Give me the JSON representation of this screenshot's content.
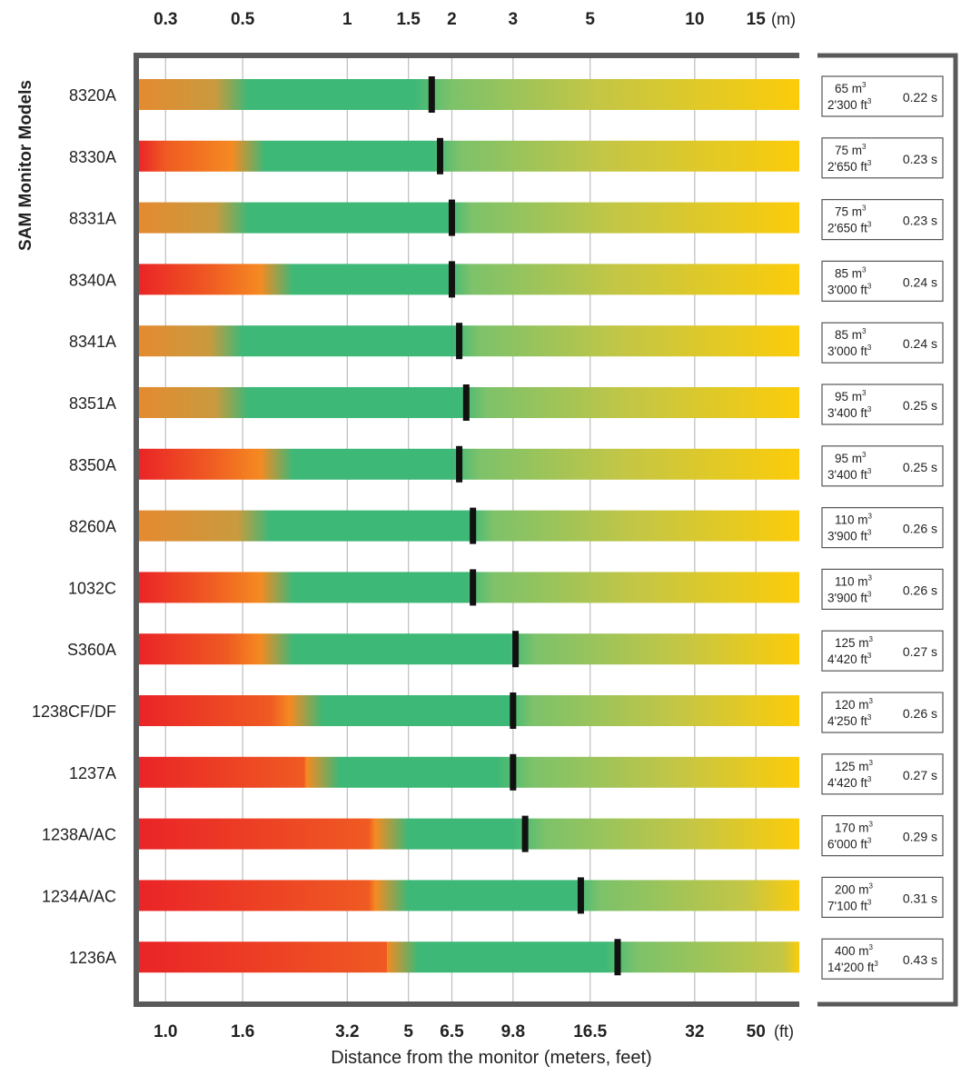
{
  "chart_data": {
    "type": "bar",
    "title": "",
    "ylabel": "SAM Monitor Models",
    "xlabel": "Distance from the monitor (meters, feet)",
    "x_scale": "log",
    "xlim_m": [
      0.25,
      20
    ],
    "top_axis": {
      "unit": "(m)",
      "ticks": [
        "0.3",
        "0.5",
        "1",
        "1.5",
        "2",
        "3",
        "5",
        "10",
        "15"
      ],
      "values": [
        0.3,
        0.5,
        1,
        1.5,
        2,
        3,
        5,
        10,
        15
      ]
    },
    "bottom_axis": {
      "unit": "(ft)",
      "ticks": [
        "1.0",
        "1.6",
        "3.2",
        "5",
        "6.5",
        "9.8",
        "16.5",
        "32",
        "50"
      ],
      "values": [
        0.3,
        0.5,
        1,
        1.5,
        2,
        3,
        5,
        10,
        15
      ]
    },
    "gridlines": true,
    "colors": {
      "red": "#ea2427",
      "orange": "#f58a22",
      "green": "#3db877",
      "yellow": "#fccc0a",
      "marker": "#111111",
      "frame": "#5a5a5a"
    },
    "series": [
      {
        "model": "8320A",
        "red_end_m": 0,
        "green_start_m": 0.52,
        "green_end_m": 1.55,
        "marker_m": 1.75,
        "volume_m3": "65",
        "volume_ft3": "2'300",
        "time": "0.22 s",
        "red_start": false
      },
      {
        "model": "8330A",
        "red_end_m": 0.3,
        "green_start_m": 0.58,
        "green_end_m": 1.75,
        "marker_m": 1.85,
        "volume_m3": "75",
        "volume_ft3": "2'650",
        "time": "0.23 s",
        "red_start": true
      },
      {
        "model": "8331A",
        "red_end_m": 0,
        "green_start_m": 0.52,
        "green_end_m": 1.95,
        "marker_m": 2.0,
        "volume_m3": "75",
        "volume_ft3": "2'650",
        "time": "0.23 s",
        "red_start": false
      },
      {
        "model": "8340A",
        "red_end_m": 0.4,
        "green_start_m": 0.7,
        "green_end_m": 1.95,
        "marker_m": 2.0,
        "volume_m3": "85",
        "volume_ft3": "3'000",
        "time": "0.24 s",
        "red_start": true
      },
      {
        "model": "8341A",
        "red_end_m": 0,
        "green_start_m": 0.5,
        "green_end_m": 2.0,
        "marker_m": 2.1,
        "volume_m3": "85",
        "volume_ft3": "3'000",
        "time": "0.24 s",
        "red_start": false
      },
      {
        "model": "8351A",
        "red_end_m": 0,
        "green_start_m": 0.52,
        "green_end_m": 2.1,
        "marker_m": 2.2,
        "volume_m3": "95",
        "volume_ft3": "3'400",
        "time": "0.25 s",
        "red_start": false
      },
      {
        "model": "8350A",
        "red_end_m": 0.4,
        "green_start_m": 0.7,
        "green_end_m": 2.0,
        "marker_m": 2.1,
        "volume_m3": "95",
        "volume_ft3": "3'400",
        "time": "0.25 s",
        "red_start": true
      },
      {
        "model": "8260A",
        "red_end_m": 0,
        "green_start_m": 0.6,
        "green_end_m": 2.25,
        "marker_m": 2.3,
        "volume_m3": "110",
        "volume_ft3": "3'900",
        "time": "0.26 s",
        "red_start": false
      },
      {
        "model": "1032C",
        "red_end_m": 0.4,
        "green_start_m": 0.7,
        "green_end_m": 2.2,
        "marker_m": 2.3,
        "volume_m3": "110",
        "volume_ft3": "3'900",
        "time": "0.26 s",
        "red_start": true
      },
      {
        "model": "S360A",
        "red_end_m": 0.45,
        "green_start_m": 0.7,
        "green_end_m": 2.9,
        "marker_m": 3.05,
        "volume_m3": "125",
        "volume_ft3": "4'420",
        "time": "0.27 s",
        "red_start": true
      },
      {
        "model": "1238CF/DF",
        "red_end_m": 0.6,
        "green_start_m": 0.85,
        "green_end_m": 2.9,
        "marker_m": 3.0,
        "volume_m3": "120",
        "volume_ft3": "4'250",
        "time": "0.26 s",
        "red_start": true
      },
      {
        "model": "1237A",
        "red_end_m": 0.75,
        "green_start_m": 0.95,
        "green_end_m": 2.7,
        "marker_m": 3.0,
        "volume_m3": "125",
        "volume_ft3": "4'420",
        "time": "0.27 s",
        "red_start": true
      },
      {
        "model": "1238A/AC",
        "red_end_m": 1.15,
        "green_start_m": 1.5,
        "green_end_m": 3.0,
        "marker_m": 3.25,
        "volume_m3": "170",
        "volume_ft3": "6'000",
        "time": "0.29 s",
        "red_start": true
      },
      {
        "model": "1234A/AC",
        "red_end_m": 1.15,
        "green_start_m": 1.5,
        "green_end_m": 4.5,
        "marker_m": 4.7,
        "volume_m3": "200",
        "volume_ft3": "7'100",
        "time": "0.31 s",
        "red_start": true
      },
      {
        "model": "1236A",
        "red_end_m": 1.3,
        "green_start_m": 1.6,
        "green_end_m": 5.5,
        "marker_m": 6.0,
        "volume_m3": "400",
        "volume_ft3": "14'200",
        "time": "0.43 s",
        "red_start": true
      }
    ]
  }
}
